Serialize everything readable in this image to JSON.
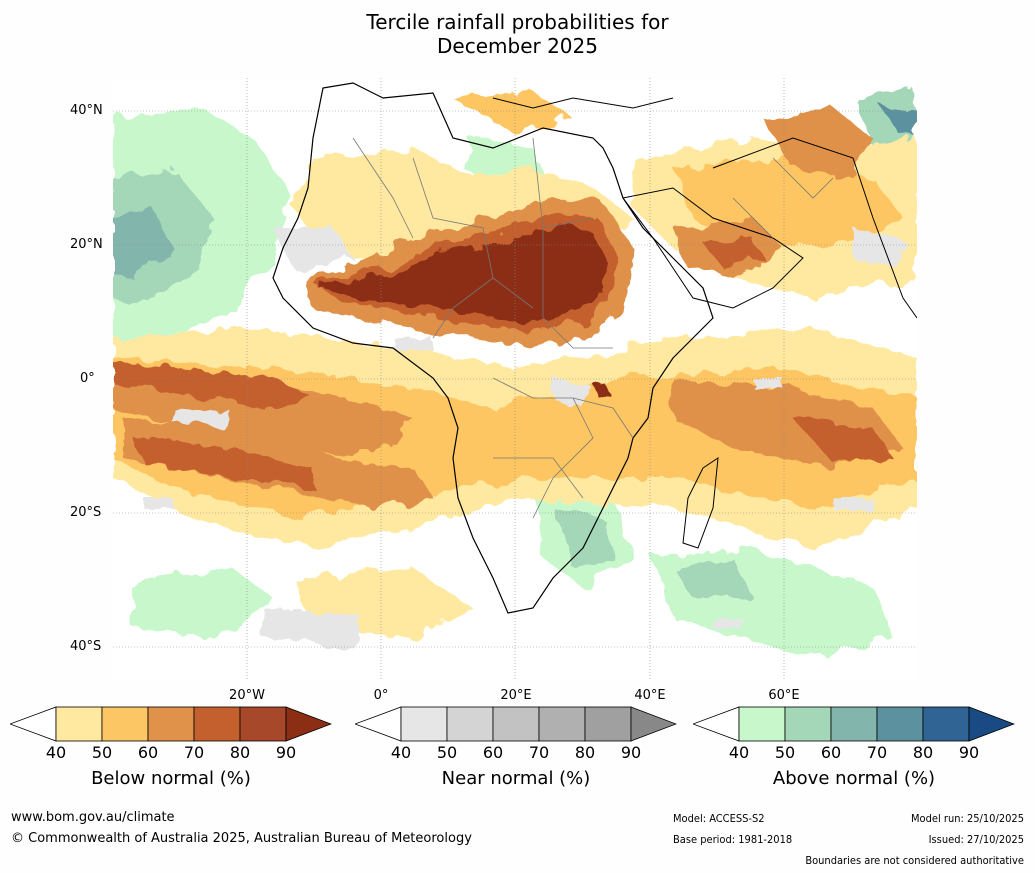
{
  "title_line1": "Tercile rainfall probabilities for",
  "title_line2": "December 2025",
  "map": {
    "lat_labels": [
      "40°N",
      "20°N",
      "0°",
      "20°S",
      "40°S"
    ],
    "lon_labels": [
      "20°W",
      "0°",
      "20°E",
      "40°E",
      "60°E"
    ]
  },
  "legends": [
    {
      "name": "Below normal (%)",
      "ticks": [
        "40",
        "50",
        "60",
        "70",
        "80",
        "90"
      ],
      "colors": [
        "#ffffff",
        "#ffe9a0",
        "#fdc664",
        "#e0914a",
        "#c4602e",
        "#a8482a",
        "#8c2e14"
      ]
    },
    {
      "name": "Near normal (%)",
      "ticks": [
        "40",
        "50",
        "60",
        "70",
        "80",
        "90"
      ],
      "colors": [
        "#ffffff",
        "#e6e6e6",
        "#d4d4d4",
        "#c2c2c2",
        "#b0b0b0",
        "#a0a0a0",
        "#888888"
      ]
    },
    {
      "name": "Above normal (%)",
      "ticks": [
        "40",
        "50",
        "60",
        "70",
        "80",
        "90"
      ],
      "colors": [
        "#ffffff",
        "#c9f7cc",
        "#a4d6b8",
        "#82b6ac",
        "#5c92a0",
        "#2f6494",
        "#1a4a84"
      ]
    }
  ],
  "footer": {
    "url": "www.bom.gov.au/climate",
    "copyright": "© Commonwealth of Australia 2025, Australian Bureau of Meteorology",
    "model": "Model: ACCESS-S2",
    "base_period": "Base period: 1981-2018",
    "model_run": "Model run: 25/10/2025",
    "issued": "Issued: 27/10/2025",
    "boundaries": "Boundaries are not considered authoritative"
  }
}
